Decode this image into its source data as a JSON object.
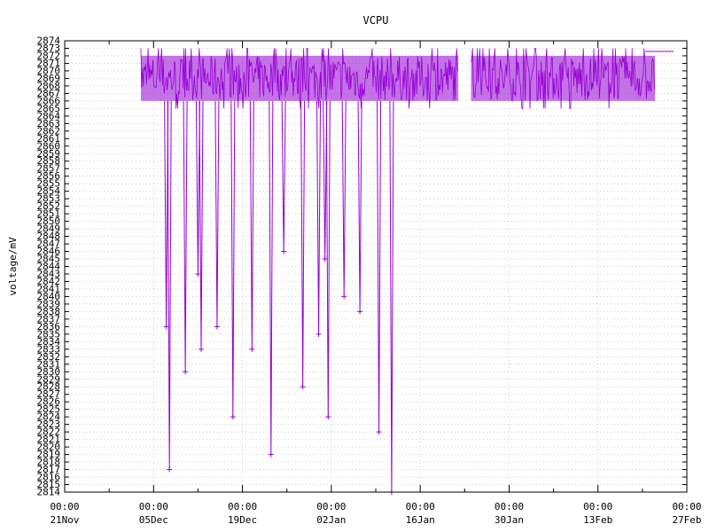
{
  "chart_data": {
    "type": "line",
    "title": "VCPU",
    "xlabel": "",
    "ylabel": "voltage/mV",
    "ylim": [
      2814,
      2874
    ],
    "xlim": [
      "2021-11-21",
      "2022-02-27"
    ],
    "grid": true,
    "legend_position": "top-right",
    "colors": {
      "series": "#9400d3",
      "grid": "#a0a0a0",
      "axis": "#000000"
    },
    "x_ticks": [
      {
        "date": "2021-11-21",
        "time": "00:00",
        "label": "21Nov"
      },
      {
        "date": "2021-12-05",
        "time": "00:00",
        "label": "05Dec"
      },
      {
        "date": "2021-12-19",
        "time": "00:00",
        "label": "19Dec"
      },
      {
        "date": "2022-01-02",
        "time": "00:00",
        "label": "02Jan"
      },
      {
        "date": "2022-01-16",
        "time": "00:00",
        "label": "16Jan"
      },
      {
        "date": "2022-01-30",
        "time": "00:00",
        "label": "30Jan"
      },
      {
        "date": "2022-02-13",
        "time": "00:00",
        "label": "13Feb"
      },
      {
        "date": "2022-02-27",
        "time": "00:00",
        "label": "27Feb"
      }
    ],
    "series": [
      {
        "name": "",
        "band": {
          "segments": [
            [
              "2021-12-03",
              "2022-01-22"
            ],
            [
              "2022-01-24",
              "2022-02-22"
            ]
          ],
          "low": 2866,
          "high": 2872,
          "peak": 2873
        },
        "dips": [
          {
            "date": "2021-12-07 12:00",
            "value": 2817
          },
          {
            "date": "2021-12-07",
            "value": 2836
          },
          {
            "date": "2021-12-10 00:00",
            "value": 2830
          },
          {
            "date": "2021-12-12 12:00",
            "value": 2833
          },
          {
            "date": "2021-12-12",
            "value": 2843
          },
          {
            "date": "2021-12-15 00:00",
            "value": 2836
          },
          {
            "date": "2021-12-17 12:00",
            "value": 2824
          },
          {
            "date": "2021-12-20 12:00",
            "value": 2833
          },
          {
            "date": "2021-12-23 12:00",
            "value": 2819
          },
          {
            "date": "2021-12-25 12:00",
            "value": 2846
          },
          {
            "date": "2021-12-28 12:00",
            "value": 2828
          },
          {
            "date": "2021-12-31 00:00",
            "value": 2835
          },
          {
            "date": "2022-01-01 12:00",
            "value": 2824
          },
          {
            "date": "2022-01-01 00:00",
            "value": 2845
          },
          {
            "date": "2022-01-04 00:00",
            "value": 2840
          },
          {
            "date": "2022-01-06 12:00",
            "value": 2838
          },
          {
            "date": "2022-01-09 12:00",
            "value": 2822
          },
          {
            "date": "2022-01-11 12:00",
            "value": 2814
          }
        ]
      }
    ]
  }
}
